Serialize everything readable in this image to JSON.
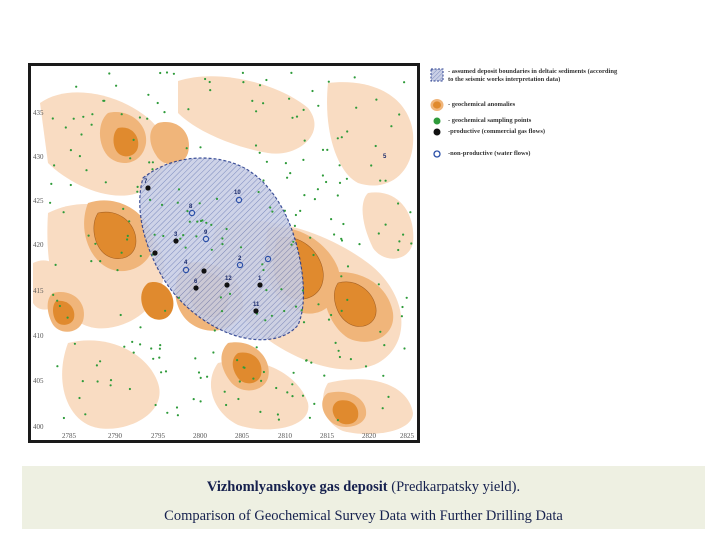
{
  "map": {
    "y_labels": [
      "435",
      "430",
      "425",
      "420",
      "415",
      "410",
      "405",
      "400"
    ],
    "x_labels": [
      "2785",
      "2790",
      "2795",
      "2800",
      "2805",
      "2810",
      "2815",
      "2820",
      "2825"
    ],
    "well_labels": [
      "10",
      "8",
      "9",
      "4",
      "3",
      "2",
      "11",
      "12",
      "1",
      "5",
      "7",
      "6"
    ],
    "colors": {
      "anomaly_dark": "#e08a2e",
      "anomaly_mid": "#f0b57a",
      "anomaly_light": "#f9dcc2",
      "deposit_fill": "#c9cfe6",
      "deposit_border": "#2a3f8f",
      "sampling_point": "#2e9b3a",
      "productive_well": "#111111",
      "non_productive_well": "#2a4fa8"
    }
  },
  "legend": {
    "items": [
      {
        "symbol": "deposit-boundary",
        "text": "- assumed deposit boundaries in deltaic sediments (according to the seismic works interpretation data)"
      },
      {
        "symbol": "geochemical-anomaly",
        "text": "- geochemical anomalies"
      },
      {
        "symbol": "sampling-point",
        "text": "- geochemical sampling points"
      },
      {
        "symbol": "productive-well",
        "text": "-productive (commercial gas flows)"
      },
      {
        "symbol": "non-productive-well",
        "text": "-non-productive (water flows)"
      }
    ]
  },
  "caption": {
    "title_bold": "Vizhomlyanskoye gas deposit",
    "title_rest": " (Predkarpatsky yield).",
    "subtitle": "Comparison of Geochemical Survey Data with Further Drilling Data"
  }
}
